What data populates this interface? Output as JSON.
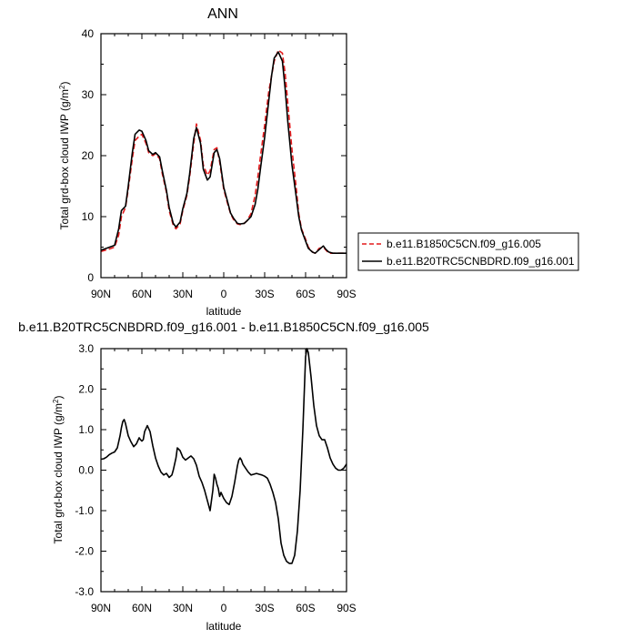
{
  "chart_data": [
    {
      "type": "line",
      "title": "ANN",
      "xlabel": "latitude",
      "ylabel_main": "Total grd-box cloud IWP (g/m",
      "ylabel_sup": "2",
      "ylabel_close": ")",
      "xlim": [
        90,
        -90
      ],
      "ylim": [
        0,
        40
      ],
      "xticks": [
        90,
        60,
        30,
        0,
        -30,
        -60,
        -90
      ],
      "xtick_labels": [
        "90N",
        "60N",
        "30N",
        "0",
        "30S",
        "60S",
        "90S"
      ],
      "yticks": [
        0,
        10,
        20,
        30,
        40
      ],
      "ytick_labels": [
        "0",
        "10",
        "20",
        "30",
        "40"
      ],
      "legend_placement": "right",
      "series": [
        {
          "name": "b.e11.B1850C5CN.f09_g16.005",
          "color": "#e41a1c",
          "dash": "dashed",
          "x": [
            90,
            85,
            80,
            77,
            75,
            72,
            70,
            67,
            65,
            62,
            60,
            57,
            55,
            52,
            50,
            47,
            45,
            42,
            40,
            37,
            35,
            32,
            30,
            27,
            25,
            22,
            20,
            17,
            15,
            12,
            10,
            7,
            5,
            3,
            0,
            -3,
            -5,
            -7,
            -10,
            -12,
            -15,
            -17,
            -20,
            -23,
            -25,
            -27,
            -30,
            -33,
            -35,
            -37,
            -40,
            -43,
            -45,
            -47,
            -50,
            -53,
            -55,
            -57,
            -60,
            -62,
            -65,
            -67,
            -70,
            -73,
            -75,
            -77,
            -80,
            -83,
            -85,
            -87,
            -90
          ],
          "y": [
            4.3,
            4.6,
            5.0,
            7.0,
            10.0,
            11.5,
            14.5,
            19.5,
            22.5,
            23.2,
            23.5,
            22.0,
            20.5,
            20.0,
            20.3,
            19.5,
            17.0,
            14.0,
            11.0,
            8.6,
            8.0,
            8.8,
            11.0,
            13.5,
            16.5,
            22.0,
            25.2,
            22.5,
            18.5,
            16.8,
            17.5,
            21.0,
            21.3,
            19.0,
            14.5,
            12.0,
            10.5,
            9.6,
            8.8,
            8.7,
            8.9,
            9.3,
            10.5,
            13.5,
            16.5,
            20.0,
            25.0,
            30.5,
            33.0,
            35.5,
            37.3,
            36.8,
            33.5,
            28.5,
            21.0,
            15.0,
            10.5,
            8.0,
            6.3,
            5.0,
            4.2,
            4.0,
            4.8,
            5.0,
            4.5,
            4.0,
            4.0,
            4.0,
            4.0,
            4.0,
            4.0
          ]
        },
        {
          "name": "b.e11.B20TRC5CNBDRD.f09_g16.001",
          "color": "#000000",
          "dash": "solid",
          "x": [
            90,
            85,
            80,
            77,
            75,
            72,
            70,
            67,
            65,
            62,
            60,
            57,
            55,
            52,
            50,
            47,
            45,
            42,
            40,
            37,
            35,
            32,
            30,
            27,
            25,
            22,
            20,
            17,
            15,
            12,
            10,
            7,
            5,
            3,
            0,
            -3,
            -5,
            -7,
            -10,
            -12,
            -15,
            -17,
            -20,
            -23,
            -25,
            -27,
            -30,
            -33,
            -35,
            -37,
            -40,
            -43,
            -45,
            -47,
            -50,
            -53,
            -55,
            -57,
            -60,
            -62,
            -65,
            -67,
            -70,
            -73,
            -75,
            -77,
            -80,
            -83,
            -85,
            -87,
            -90
          ],
          "y": [
            4.5,
            4.9,
            5.3,
            8.0,
            11.0,
            11.7,
            15.0,
            20.5,
            23.5,
            24.2,
            24.0,
            22.5,
            20.8,
            20.2,
            20.5,
            19.8,
            17.5,
            14.3,
            11.5,
            8.9,
            8.3,
            9.1,
            11.3,
            13.8,
            17.0,
            22.8,
            24.6,
            22.0,
            17.8,
            16.0,
            16.5,
            20.5,
            21.0,
            19.5,
            14.8,
            12.3,
            10.6,
            9.8,
            8.9,
            8.8,
            8.9,
            9.3,
            10.0,
            12.0,
            14.5,
            18.0,
            23.0,
            29.0,
            33.0,
            36.0,
            37.0,
            35.5,
            31.0,
            25.5,
            18.5,
            13.5,
            10.0,
            7.8,
            6.0,
            4.8,
            4.2,
            4.0,
            4.6,
            5.2,
            4.6,
            4.2,
            4.0,
            4.0,
            4.0,
            4.0,
            4.0
          ]
        }
      ]
    },
    {
      "type": "line",
      "title": "b.e11.B20TRC5CNBDRD.f09_g16.001 - b.e11.B1850C5CN.f09_g16.005",
      "xlabel": "latitude",
      "ylabel_main": "Total grd-box cloud IWP (g/m",
      "ylabel_sup": "2",
      "ylabel_close": ")",
      "xlim": [
        90,
        -90
      ],
      "ylim": [
        -3,
        3
      ],
      "xticks": [
        90,
        60,
        30,
        0,
        -30,
        -60,
        -90
      ],
      "xtick_labels": [
        "90N",
        "60N",
        "30N",
        "0",
        "30S",
        "60S",
        "90S"
      ],
      "yticks": [
        -3,
        -2,
        -1,
        0,
        1,
        2,
        3
      ],
      "ytick_labels": [
        "-3.0",
        "-2.0",
        "-1.0",
        "0.0",
        "1.0",
        "2.0",
        "3.0"
      ],
      "series": [
        {
          "color": "#000000",
          "dash": "solid",
          "x": [
            90,
            88,
            86,
            84,
            82,
            80,
            78,
            76,
            75,
            74,
            73,
            72,
            70,
            68,
            66,
            64,
            62,
            61,
            60,
            59,
            58,
            56,
            54,
            52,
            50,
            48,
            46,
            44,
            42,
            40,
            38,
            37,
            36,
            35,
            34,
            32,
            30,
            28,
            26,
            24,
            22,
            20,
            18,
            16,
            14,
            12,
            10,
            8,
            7,
            6,
            5,
            4,
            3,
            2,
            0,
            -2,
            -4,
            -6,
            -8,
            -10,
            -11,
            -12,
            -13,
            -14,
            -16,
            -18,
            -20,
            -22,
            -24,
            -26,
            -28,
            -30,
            -32,
            -34,
            -36,
            -38,
            -40,
            -42,
            -44,
            -46,
            -48,
            -50,
            -52,
            -54,
            -56,
            -58,
            -60,
            -61,
            -62,
            -64,
            -66,
            -68,
            -70,
            -72,
            -74,
            -76,
            -78,
            -80,
            -82,
            -84,
            -86,
            -88,
            -90
          ],
          "y": [
            0.27,
            0.28,
            0.32,
            0.38,
            0.42,
            0.45,
            0.55,
            0.85,
            1.05,
            1.2,
            1.25,
            1.15,
            0.85,
            0.7,
            0.58,
            0.65,
            0.8,
            0.75,
            0.72,
            0.75,
            0.95,
            1.1,
            0.95,
            0.6,
            0.3,
            0.1,
            -0.05,
            -0.12,
            -0.08,
            -0.18,
            -0.12,
            0.0,
            0.15,
            0.3,
            0.55,
            0.48,
            0.32,
            0.25,
            0.3,
            0.35,
            0.28,
            0.12,
            -0.15,
            -0.3,
            -0.5,
            -0.75,
            -1.0,
            -0.5,
            -0.1,
            -0.2,
            -0.35,
            -0.45,
            -0.65,
            -0.55,
            -0.7,
            -0.8,
            -0.85,
            -0.65,
            -0.3,
            0.1,
            0.25,
            0.3,
            0.25,
            0.15,
            0.05,
            -0.05,
            -0.12,
            -0.1,
            -0.08,
            -0.1,
            -0.12,
            -0.15,
            -0.2,
            -0.35,
            -0.55,
            -0.8,
            -1.2,
            -1.8,
            -2.1,
            -2.25,
            -2.3,
            -2.3,
            -2.1,
            -1.5,
            -0.5,
            1.0,
            2.8,
            3.0,
            2.9,
            2.3,
            1.6,
            1.1,
            0.85,
            0.75,
            0.75,
            0.55,
            0.3,
            0.15,
            0.05,
            0.0,
            0.0,
            0.05,
            0.15
          ]
        }
      ]
    }
  ]
}
